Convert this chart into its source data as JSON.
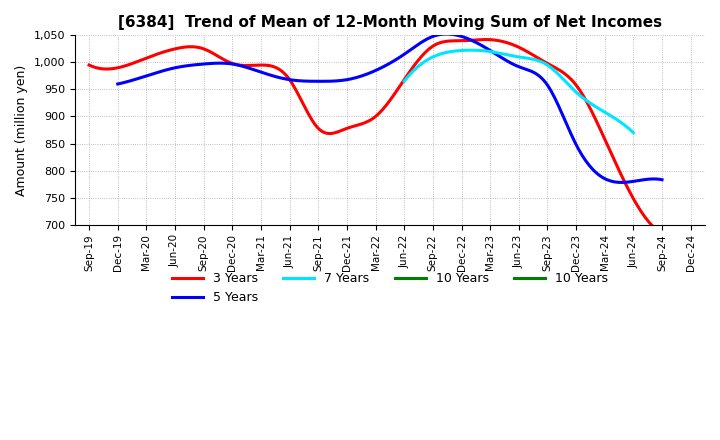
{
  "title": "[6384]  Trend of Mean of 12-Month Moving Sum of Net Incomes",
  "ylabel": "Amount (million yen)",
  "ylim": [
    700,
    1050
  ],
  "yticks": [
    700,
    750,
    800,
    850,
    900,
    950,
    1000,
    1050
  ],
  "x_labels": [
    "Sep-19",
    "Dec-19",
    "Mar-20",
    "Jun-20",
    "Sep-20",
    "Dec-20",
    "Mar-21",
    "Jun-21",
    "Sep-21",
    "Dec-21",
    "Mar-22",
    "Jun-22",
    "Sep-22",
    "Dec-22",
    "Mar-23",
    "Jun-23",
    "Sep-23",
    "Dec-23",
    "Mar-24",
    "Jun-24",
    "Sep-24",
    "Dec-24"
  ],
  "series": {
    "3 Years": {
      "color": "#ff0000",
      "linewidth": 2.2,
      "data_x": [
        0,
        1,
        2,
        3,
        4,
        5,
        6,
        7,
        8,
        9,
        10,
        11,
        12,
        13,
        14,
        15,
        16,
        17,
        18,
        19,
        20
      ],
      "data_y": [
        995,
        990,
        1008,
        1025,
        1025,
        998,
        995,
        968,
        878,
        878,
        900,
        968,
        1030,
        1040,
        1042,
        1028,
        998,
        958,
        858,
        748,
        685
      ]
    },
    "5 Years": {
      "color": "#0000ff",
      "linewidth": 2.2,
      "data_x": [
        1,
        2,
        3,
        4,
        5,
        6,
        7,
        8,
        9,
        10,
        11,
        12,
        13,
        14,
        15,
        16,
        17,
        18,
        19,
        20
      ],
      "data_y": [
        960,
        975,
        990,
        997,
        997,
        982,
        968,
        965,
        968,
        985,
        1015,
        1048,
        1048,
        1022,
        992,
        958,
        848,
        785,
        780,
        783
      ]
    },
    "7 Years": {
      "color": "#00e5ff",
      "linewidth": 2.2,
      "data_x": [
        11,
        12,
        13,
        14,
        15,
        16,
        17,
        18,
        19
      ],
      "data_y": [
        965,
        1010,
        1022,
        1020,
        1010,
        995,
        945,
        908,
        870
      ]
    },
    "10 Years": {
      "color": "#008000",
      "linewidth": 2.2,
      "data_x": [],
      "data_y": []
    }
  },
  "background_color": "#ffffff",
  "grid_color": "#888888",
  "title_fontsize": 11,
  "legend_fontsize": 9
}
